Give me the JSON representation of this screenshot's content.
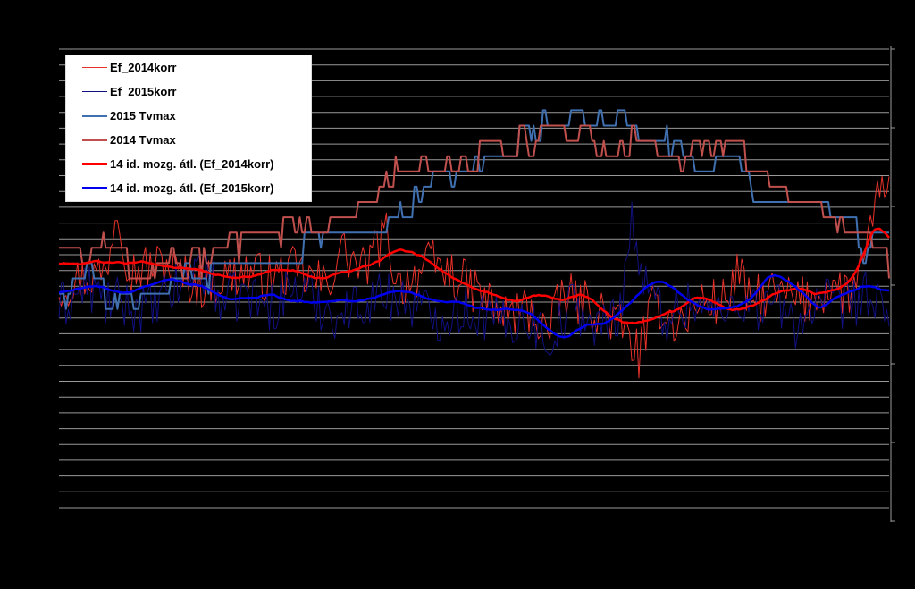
{
  "chart_data": {
    "type": "line",
    "title": "",
    "xlabel": "",
    "ylabel": "",
    "grid": true,
    "legend_position": "top-left",
    "x_points": 356,
    "y_range": [
      0,
      30
    ],
    "y2_range": [
      -30,
      30
    ],
    "series": [
      {
        "name": "Ef_2014korr",
        "axis": "y2",
        "color": "#e8312a",
        "width": 1,
        "anchors": [
          [
            0,
            -1
          ],
          [
            20,
            1
          ],
          [
            25,
            10
          ],
          [
            30,
            1
          ],
          [
            45,
            2
          ],
          [
            60,
            -1
          ],
          [
            80,
            1
          ],
          [
            90,
            0
          ],
          [
            100,
            1
          ],
          [
            115,
            -1
          ],
          [
            120,
            4
          ],
          [
            130,
            1
          ],
          [
            140,
            6
          ],
          [
            145,
            -1
          ],
          [
            160,
            2
          ],
          [
            170,
            0
          ],
          [
            180,
            -2
          ],
          [
            190,
            -5
          ],
          [
            200,
            -4
          ],
          [
            210,
            -7
          ],
          [
            215,
            -2
          ],
          [
            230,
            -4
          ],
          [
            240,
            -6
          ],
          [
            248,
            -10
          ],
          [
            255,
            -3
          ],
          [
            265,
            -6
          ],
          [
            275,
            -3
          ],
          [
            285,
            -3
          ],
          [
            290,
            1
          ],
          [
            295,
            -3
          ],
          [
            305,
            -2
          ],
          [
            320,
            -3
          ],
          [
            330,
            -1
          ],
          [
            338,
            -2
          ],
          [
            345,
            2
          ],
          [
            350,
            10
          ],
          [
            352,
            16
          ],
          [
            354,
            9
          ],
          [
            356,
            12
          ]
        ]
      },
      {
        "name": "Ef_2015korr",
        "axis": "y2",
        "color": "#101080",
        "width": 1,
        "anchors": [
          [
            0,
            -4
          ],
          [
            12,
            -1
          ],
          [
            20,
            -3
          ],
          [
            40,
            -4
          ],
          [
            55,
            0
          ],
          [
            60,
            2
          ],
          [
            70,
            -3
          ],
          [
            80,
            -2
          ],
          [
            90,
            -4
          ],
          [
            100,
            -1
          ],
          [
            110,
            -3
          ],
          [
            120,
            -5
          ],
          [
            130,
            -3
          ],
          [
            140,
            -2
          ],
          [
            150,
            -3
          ],
          [
            160,
            -5
          ],
          [
            175,
            -4
          ],
          [
            190,
            -6
          ],
          [
            200,
            -5
          ],
          [
            210,
            -8
          ],
          [
            220,
            -3
          ],
          [
            230,
            -7
          ],
          [
            240,
            -4
          ],
          [
            245,
            8
          ],
          [
            250,
            -1
          ],
          [
            260,
            -5
          ],
          [
            270,
            -3
          ],
          [
            285,
            -5
          ],
          [
            290,
            -2
          ],
          [
            295,
            -4
          ],
          [
            305,
            -3
          ],
          [
            315,
            -6
          ],
          [
            325,
            -3
          ],
          [
            335,
            -4
          ],
          [
            345,
            -2
          ],
          [
            355,
            -6
          ]
        ]
      },
      {
        "name": "2015 Tvmax",
        "axis": "y",
        "color": "#4070b0",
        "width": 2,
        "anchors": [
          [
            0,
            14
          ],
          [
            15,
            15
          ],
          [
            22,
            13
          ],
          [
            30,
            13
          ],
          [
            40,
            14
          ],
          [
            55,
            15
          ],
          [
            70,
            15
          ],
          [
            85,
            16
          ],
          [
            100,
            17
          ],
          [
            120,
            18
          ],
          [
            140,
            19
          ],
          [
            160,
            21
          ],
          [
            175,
            22
          ],
          [
            190,
            23
          ],
          [
            205,
            25
          ],
          [
            215,
            26
          ],
          [
            225,
            25
          ],
          [
            235,
            26
          ],
          [
            245,
            24
          ],
          [
            255,
            25
          ],
          [
            265,
            23
          ],
          [
            275,
            22
          ],
          [
            285,
            23
          ],
          [
            293,
            22
          ],
          [
            300,
            20
          ],
          [
            320,
            20
          ],
          [
            330,
            19
          ],
          [
            340,
            17
          ],
          [
            350,
            17
          ],
          [
            356,
            17
          ]
        ]
      },
      {
        "name": "2014 Tvmax",
        "axis": "y",
        "color": "#c0504d",
        "width": 2,
        "anchors": [
          [
            0,
            17
          ],
          [
            10,
            17
          ],
          [
            20,
            17
          ],
          [
            30,
            15
          ],
          [
            40,
            16
          ],
          [
            50,
            16
          ],
          [
            60,
            16
          ],
          [
            70,
            17
          ],
          [
            85,
            17
          ],
          [
            100,
            18
          ],
          [
            115,
            19
          ],
          [
            130,
            20
          ],
          [
            145,
            22
          ],
          [
            160,
            22
          ],
          [
            175,
            23
          ],
          [
            190,
            24
          ],
          [
            205,
            24
          ],
          [
            215,
            25
          ],
          [
            225,
            24
          ],
          [
            235,
            23
          ],
          [
            245,
            24
          ],
          [
            260,
            23
          ],
          [
            275,
            23
          ],
          [
            285,
            24
          ],
          [
            293,
            22
          ],
          [
            305,
            21
          ],
          [
            315,
            20
          ],
          [
            325,
            20
          ],
          [
            335,
            18
          ],
          [
            345,
            17
          ],
          [
            356,
            15
          ]
        ]
      },
      {
        "name": "14 id. mozg. átl. (Ef_2014korr)",
        "axis": "y2",
        "color": "#ff0000",
        "width": 2.5,
        "anchors": [
          [
            0,
            2
          ],
          [
            20,
            2
          ],
          [
            40,
            2
          ],
          [
            60,
            1
          ],
          [
            75,
            0
          ],
          [
            90,
            1
          ],
          [
            100,
            1
          ],
          [
            110,
            0
          ],
          [
            125,
            1
          ],
          [
            135,
            2
          ],
          [
            145,
            4
          ],
          [
            155,
            3
          ],
          [
            165,
            1
          ],
          [
            175,
            -1
          ],
          [
            185,
            -2
          ],
          [
            195,
            -3
          ],
          [
            205,
            -2
          ],
          [
            215,
            -3
          ],
          [
            225,
            -2
          ],
          [
            235,
            -5
          ],
          [
            245,
            -6
          ],
          [
            255,
            -5
          ],
          [
            265,
            -4
          ],
          [
            275,
            -2
          ],
          [
            285,
            -4
          ],
          [
            295,
            -4
          ],
          [
            305,
            -2
          ],
          [
            315,
            -1
          ],
          [
            325,
            -2
          ],
          [
            335,
            -1
          ],
          [
            340,
            0
          ],
          [
            345,
            4
          ],
          [
            350,
            8
          ],
          [
            356,
            4
          ]
        ]
      },
      {
        "name": "14 id. mozg. átl. (Ef_2015korr)",
        "axis": "y2",
        "color": "#0000ee",
        "width": 2.5,
        "anchors": [
          [
            0,
            -2
          ],
          [
            15,
            -1
          ],
          [
            30,
            -2
          ],
          [
            45,
            0
          ],
          [
            60,
            -1
          ],
          [
            75,
            -3
          ],
          [
            90,
            -2
          ],
          [
            100,
            -3
          ],
          [
            110,
            -3
          ],
          [
            125,
            -3
          ],
          [
            140,
            -2
          ],
          [
            150,
            -2
          ],
          [
            160,
            -3
          ],
          [
            170,
            -3
          ],
          [
            180,
            -4
          ],
          [
            190,
            -4
          ],
          [
            200,
            -4
          ],
          [
            210,
            -7
          ],
          [
            215,
            -8
          ],
          [
            225,
            -6
          ],
          [
            235,
            -6
          ],
          [
            245,
            -3
          ],
          [
            255,
            0
          ],
          [
            265,
            -2
          ],
          [
            275,
            -4
          ],
          [
            285,
            -4
          ],
          [
            295,
            -3
          ],
          [
            305,
            1
          ],
          [
            315,
            -1
          ],
          [
            325,
            -4
          ],
          [
            335,
            -2
          ],
          [
            345,
            -1
          ],
          [
            350,
            -1
          ],
          [
            356,
            -2
          ]
        ]
      }
    ]
  },
  "legend": {
    "items": [
      {
        "label": "Ef_2014korr",
        "color": "#e8312a",
        "width": 1
      },
      {
        "label": "Ef_2015korr",
        "color": "#101080",
        "width": 1
      },
      {
        "label": "2015 Tvmax",
        "color": "#4070b0",
        "width": 2
      },
      {
        "label": "2014 Tvmax",
        "color": "#c0504d",
        "width": 2
      },
      {
        "label": "14 id. mozg. átl. (Ef_2014korr)",
        "color": "#ff0000",
        "width": 3
      },
      {
        "label": "14 id. mozg. átl. (Ef_2015korr)",
        "color": "#0000ee",
        "width": 3
      }
    ]
  }
}
